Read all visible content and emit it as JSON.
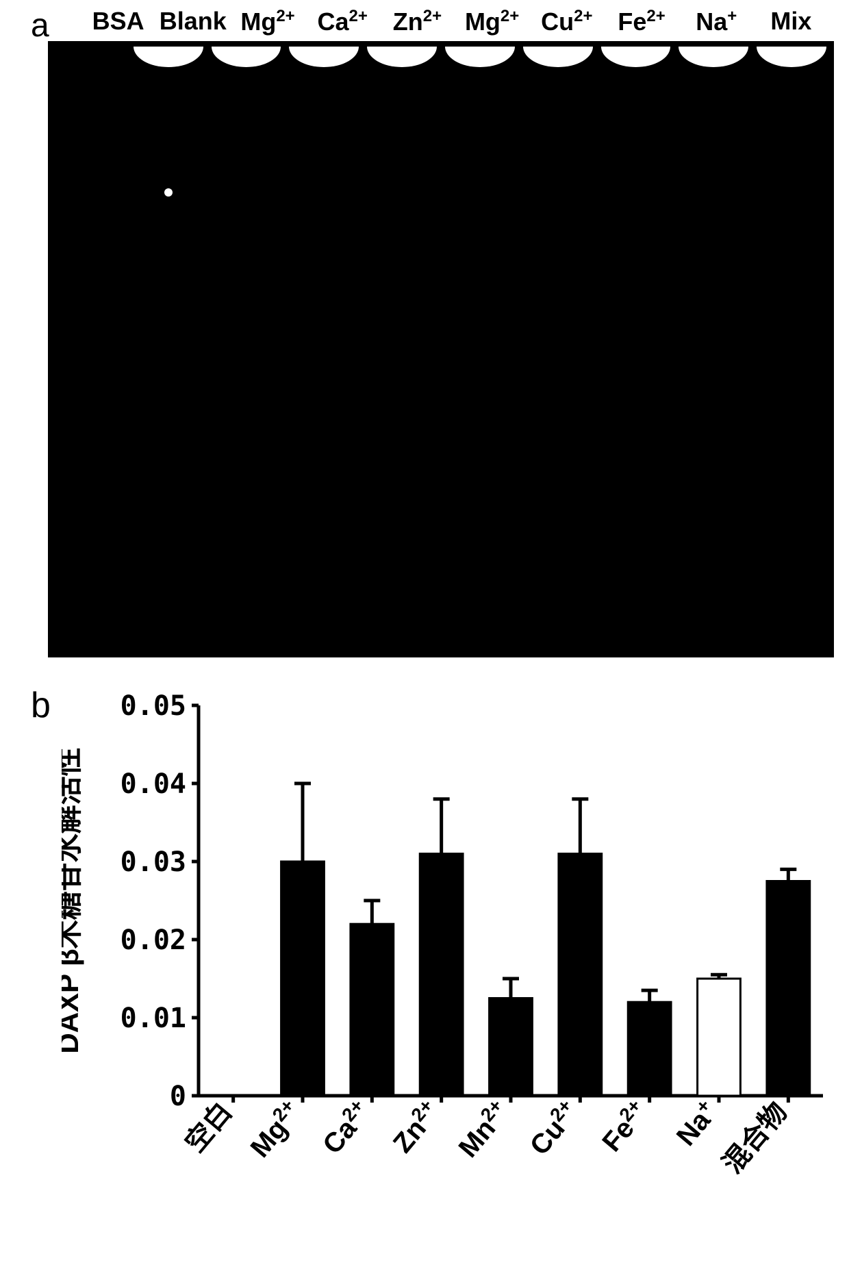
{
  "panelA": {
    "label": "a",
    "gel": {
      "background_color": "#000000",
      "well_color": "#ffffff",
      "lanes": [
        {
          "label": "BSA",
          "sup": "",
          "has_well": false
        },
        {
          "label": "Blank",
          "sup": "",
          "has_well": true
        },
        {
          "label": "Mg",
          "sup": "2+",
          "has_well": true
        },
        {
          "label": "Ca",
          "sup": "2+",
          "has_well": true
        },
        {
          "label": "Zn",
          "sup": "2+",
          "has_well": true
        },
        {
          "label": "Mg",
          "sup": "2+",
          "has_well": true
        },
        {
          "label": "Cu",
          "sup": "2+",
          "has_well": true
        },
        {
          "label": "Fe",
          "sup": "2+",
          "has_well": true
        },
        {
          "label": "Na",
          "sup": "+",
          "has_well": true
        },
        {
          "label": "Mix",
          "sup": "",
          "has_well": true
        }
      ]
    }
  },
  "panelB": {
    "label": "b",
    "chart": {
      "type": "bar",
      "ylabel": "DAXP β木糖苷水解活性",
      "ylabel_fontsize": 42,
      "label_fontsize": 40,
      "tick_fontsize": 40,
      "ylim": [
        0,
        0.05
      ],
      "yticks": [
        0,
        0.01,
        0.02,
        0.03,
        0.04,
        0.05
      ],
      "ytick_labels": [
        "0",
        "0.01",
        "0.02",
        "0.03",
        "0.04",
        "0.05"
      ],
      "axis_color": "#000000",
      "axis_width": 5,
      "tick_length": 10,
      "background_color": "#ffffff",
      "bar_width": 0.62,
      "bars": [
        {
          "label": "空白",
          "sup": "",
          "value": 0.0,
          "err": 0.0,
          "fill": "#000000"
        },
        {
          "label": "Mg",
          "sup": "2+",
          "value": 0.03,
          "err": 0.01,
          "fill": "#000000"
        },
        {
          "label": "Ca",
          "sup": "2+",
          "value": 0.022,
          "err": 0.003,
          "fill": "#000000"
        },
        {
          "label": "Zn",
          "sup": "2+",
          "value": 0.031,
          "err": 0.007,
          "fill": "#000000"
        },
        {
          "label": "Mn",
          "sup": "2+",
          "value": 0.0125,
          "err": 0.0025,
          "fill": "#000000"
        },
        {
          "label": "Cu",
          "sup": "2+",
          "value": 0.031,
          "err": 0.007,
          "fill": "#000000"
        },
        {
          "label": "Fe",
          "sup": "2+",
          "value": 0.012,
          "err": 0.0015,
          "fill": "#000000"
        },
        {
          "label": "Na",
          "sup": "+",
          "value": 0.015,
          "err": 0.0005,
          "fill": "#ffffff"
        },
        {
          "label": "混合物",
          "sup": "",
          "value": 0.0275,
          "err": 0.0015,
          "fill": "#000000"
        }
      ],
      "error_bar_color": "#000000",
      "error_bar_width": 5,
      "error_cap_width": 24,
      "xlabel_rotation": -50
    }
  }
}
